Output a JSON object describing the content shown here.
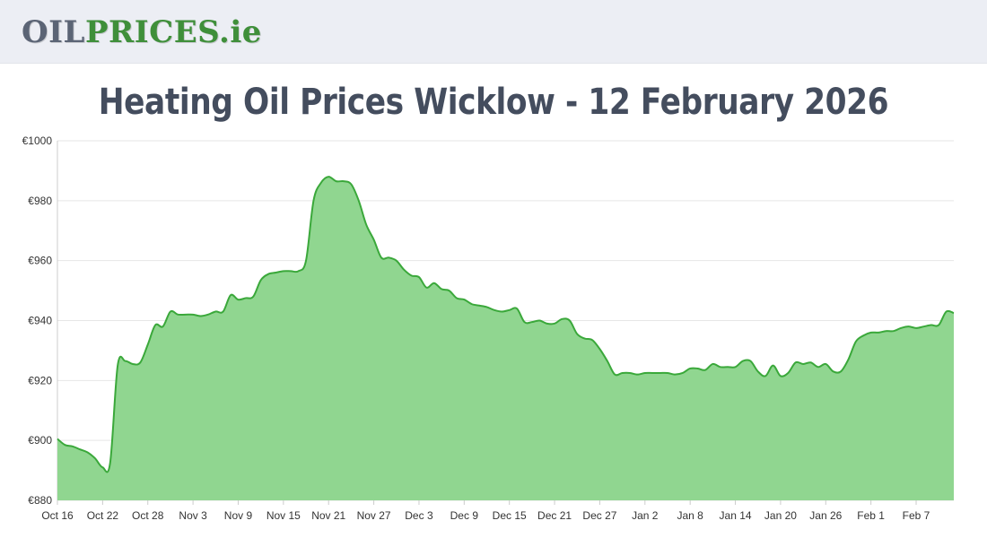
{
  "header": {
    "logo_oil": "OIL",
    "logo_prices": "PRICES",
    "logo_tld": ".ie"
  },
  "chart_data": {
    "type": "area",
    "title": "Heating Oil Prices Wicklow - 12 February 2026",
    "xlabel": "",
    "ylabel": "",
    "ylim": [
      880,
      1000
    ],
    "yticks": [
      "€880",
      "€900",
      "€920",
      "€940",
      "€960",
      "€980",
      "€1000"
    ],
    "ytick_values": [
      880,
      900,
      920,
      940,
      960,
      980,
      1000
    ],
    "xticks": [
      "Oct 16",
      "Oct 22",
      "Oct 28",
      "Nov 3",
      "Nov 9",
      "Nov 15",
      "Nov 21",
      "Nov 27",
      "Dec 3",
      "Dec 9",
      "Dec 15",
      "Dec 21",
      "Dec 27",
      "Jan 2",
      "Jan 8",
      "Jan 14",
      "Jan 20",
      "Jan 26",
      "Feb 1",
      "Feb 7"
    ],
    "grid": true,
    "colors": {
      "line": "#3aa83a",
      "fill": "#90d690",
      "grid": "#e6e6e6"
    },
    "x": [
      "2025-10-16",
      "2025-10-17",
      "2025-10-18",
      "2025-10-19",
      "2025-10-20",
      "2025-10-21",
      "2025-10-22",
      "2025-10-23",
      "2025-10-24",
      "2025-10-25",
      "2025-10-26",
      "2025-10-27",
      "2025-10-28",
      "2025-10-29",
      "2025-10-30",
      "2025-10-31",
      "2025-11-01",
      "2025-11-02",
      "2025-11-03",
      "2025-11-04",
      "2025-11-05",
      "2025-11-06",
      "2025-11-07",
      "2025-11-08",
      "2025-11-09",
      "2025-11-10",
      "2025-11-11",
      "2025-11-12",
      "2025-11-13",
      "2025-11-14",
      "2025-11-15",
      "2025-11-16",
      "2025-11-17",
      "2025-11-18",
      "2025-11-19",
      "2025-11-20",
      "2025-11-21",
      "2025-11-22",
      "2025-11-23",
      "2025-11-24",
      "2025-11-25",
      "2025-11-26",
      "2025-11-27",
      "2025-11-28",
      "2025-11-29",
      "2025-11-30",
      "2025-12-01",
      "2025-12-02",
      "2025-12-03",
      "2025-12-04",
      "2025-12-05",
      "2025-12-06",
      "2025-12-07",
      "2025-12-08",
      "2025-12-09",
      "2025-12-10",
      "2025-12-11",
      "2025-12-12",
      "2025-12-13",
      "2025-12-14",
      "2025-12-15",
      "2025-12-16",
      "2025-12-17",
      "2025-12-18",
      "2025-12-19",
      "2025-12-20",
      "2025-12-21",
      "2025-12-22",
      "2025-12-23",
      "2025-12-24",
      "2025-12-25",
      "2025-12-26",
      "2025-12-27",
      "2025-12-28",
      "2025-12-29",
      "2025-12-30",
      "2025-12-31",
      "2026-01-01",
      "2026-01-02",
      "2026-01-03",
      "2026-01-04",
      "2026-01-05",
      "2026-01-06",
      "2026-01-07",
      "2026-01-08",
      "2026-01-09",
      "2026-01-10",
      "2026-01-11",
      "2026-01-12",
      "2026-01-13",
      "2026-01-14",
      "2026-01-15",
      "2026-01-16",
      "2026-01-17",
      "2026-01-18",
      "2026-01-19",
      "2026-01-20",
      "2026-01-21",
      "2026-01-22",
      "2026-01-23",
      "2026-01-24",
      "2026-01-25",
      "2026-01-26",
      "2026-01-27",
      "2026-01-28",
      "2026-01-29",
      "2026-01-30",
      "2026-01-31",
      "2026-02-01",
      "2026-02-02",
      "2026-02-03",
      "2026-02-04",
      "2026-02-05",
      "2026-02-06",
      "2026-02-07",
      "2026-02-08",
      "2026-02-09",
      "2026-02-10",
      "2026-02-11",
      "2026-02-12"
    ],
    "values": [
      900.5,
      898.5,
      898,
      897,
      896,
      894,
      891,
      892.5,
      925,
      926.5,
      925.5,
      926,
      932,
      938.5,
      938,
      943,
      942,
      942,
      942,
      941.5,
      942,
      943,
      943,
      948.5,
      947,
      947.5,
      948,
      953.5,
      955.5,
      956,
      956.5,
      956.5,
      956.5,
      960,
      980,
      986,
      988,
      986.5,
      986.5,
      985.5,
      980,
      972,
      967,
      961,
      961,
      960,
      957,
      955,
      954.5,
      951,
      952.5,
      950.5,
      950,
      947.5,
      947,
      945.5,
      945,
      944.5,
      943.5,
      943,
      943.5,
      944,
      939.5,
      939.5,
      940,
      939,
      939,
      940.5,
      940,
      935.5,
      934,
      933.5,
      930.5,
      926.5,
      922,
      922.5,
      922.5,
      922,
      922.5,
      922.5,
      922.5,
      922.5,
      922,
      922.5,
      924,
      924,
      923.5,
      925.5,
      924.5,
      924.5,
      924.5,
      926.5,
      926.5,
      923,
      921.5,
      925,
      921.5,
      922.5,
      926,
      925.5,
      926,
      924.5,
      925.5,
      923,
      923,
      927,
      933,
      935,
      936,
      936,
      936.5,
      936.5,
      937.5,
      938,
      937.5,
      938,
      938.5,
      938.5,
      943,
      942.5
    ]
  }
}
